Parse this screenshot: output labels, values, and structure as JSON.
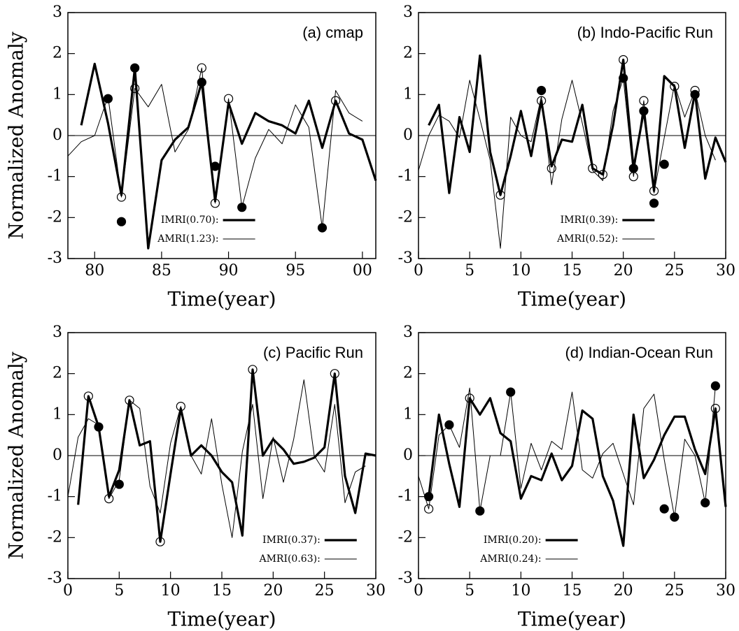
{
  "chart_data": [
    {
      "type": "line",
      "title": "(a) cmap",
      "xlabel": "Time(year)",
      "ylabel": "Normalized Anomaly",
      "xlim": [
        78,
        101
      ],
      "ylim": [
        -3,
        3
      ],
      "xticks": [
        80,
        85,
        90,
        95,
        {
          "value": 100,
          "label": "00"
        }
      ],
      "yticks": [
        -3,
        -2,
        -1,
        0,
        1,
        2,
        3
      ],
      "series": [
        {
          "name": "IMRI(0.70):",
          "color": "#000000",
          "line_width": 3.2,
          "x": [
            79,
            80,
            81,
            82,
            83,
            84,
            85,
            86,
            87,
            88,
            89,
            90,
            91,
            92,
            93,
            94,
            95,
            96,
            97,
            98,
            99,
            100,
            101
          ],
          "values": [
            0.25,
            1.75,
            0.3,
            -1.45,
            1.65,
            -2.75,
            -0.6,
            -0.1,
            0.2,
            1.3,
            -1.6,
            0.8,
            -0.2,
            0.55,
            0.35,
            0.25,
            0.05,
            0.85,
            -0.3,
            0.85,
            0.05,
            -0.1,
            -1.1
          ]
        },
        {
          "name": "AMRI(1.23):",
          "color": "#000000",
          "line_width": 1,
          "x": [
            78,
            79,
            80,
            81,
            82,
            83,
            84,
            85,
            86,
            87,
            88,
            89,
            90,
            91,
            92,
            93,
            94,
            95,
            96,
            97,
            98,
            99,
            100
          ],
          "values": [
            -0.5,
            -0.15,
            0,
            0.95,
            -1.5,
            1.15,
            0.7,
            1.25,
            -0.4,
            0.15,
            1.65,
            -1.65,
            0.9,
            -1.75,
            -0.55,
            0.15,
            -0.2,
            0.75,
            0.2,
            -2.25,
            1.1,
            0.55,
            0.35
          ]
        }
      ],
      "filled_markers": {
        "x": [
          81,
          82,
          83,
          88,
          89,
          91,
          97
        ],
        "values": [
          0.9,
          -2.1,
          1.65,
          1.3,
          -0.75,
          -1.75,
          -2.25
        ]
      },
      "open_markers": {
        "x": [
          82,
          83,
          88,
          89,
          90,
          98
        ],
        "values": [
          -1.5,
          1.15,
          1.65,
          -1.65,
          0.9,
          0.85
        ]
      }
    },
    {
      "type": "line",
      "title": "(b) Indo-Pacific Run",
      "xlabel": "Time(year)",
      "xlim": [
        0,
        30
      ],
      "ylim": [
        -3,
        3
      ],
      "xticks": [
        0,
        5,
        10,
        15,
        20,
        25,
        30
      ],
      "yticks": [
        -3,
        -2,
        -1,
        0,
        1,
        2,
        3
      ],
      "series": [
        {
          "name": "IMRI(0.39):",
          "color": "#000000",
          "line_width": 3.2,
          "x": [
            1,
            2,
            3,
            4,
            5,
            6,
            7,
            8,
            9,
            10,
            11,
            12,
            13,
            14,
            15,
            16,
            17,
            18,
            19,
            20,
            21,
            22,
            23,
            24,
            25,
            26,
            27,
            28,
            29,
            30
          ],
          "values": [
            0.25,
            0.75,
            -1.4,
            0.45,
            -0.4,
            1.95,
            -0.4,
            -1.45,
            -0.5,
            0.6,
            -0.5,
            0.85,
            -0.75,
            -0.1,
            -0.15,
            0.75,
            -0.8,
            -0.95,
            0.25,
            1.85,
            -0.8,
            0.6,
            -1.35,
            1.45,
            1.2,
            -0.3,
            1.05,
            -1.05,
            -0.05,
            -0.65
          ]
        },
        {
          "name": "AMRI(0.52):",
          "color": "#000000",
          "line_width": 1,
          "x": [
            0,
            1,
            2,
            3,
            4,
            5,
            6,
            7,
            8,
            9,
            10,
            11,
            12,
            13,
            14,
            15,
            16,
            17,
            18,
            19,
            20,
            21,
            22,
            23,
            24,
            25,
            26,
            27,
            28,
            29
          ],
          "values": [
            -0.85,
            0,
            0.5,
            0.35,
            -0.05,
            1.35,
            0.4,
            -0.6,
            -2.75,
            0.45,
            0,
            -0.15,
            0.95,
            -1.2,
            0.4,
            1.35,
            0.3,
            -0.85,
            -1.1,
            0.6,
            1.4,
            -1,
            0.85,
            -1.4,
            -0.05,
            1.25,
            0.45,
            1.1,
            0,
            -0.6
          ]
        }
      ],
      "filled_markers": {
        "x": [
          12,
          20,
          21,
          22,
          23,
          24,
          27
        ],
        "values": [
          1.1,
          1.4,
          -0.8,
          0.6,
          -1.65,
          -0.7,
          1
        ]
      },
      "open_markers": {
        "x": [
          8,
          12,
          13,
          17,
          18,
          20,
          21,
          22,
          23,
          25,
          27
        ],
        "values": [
          -1.45,
          0.85,
          -0.8,
          -0.8,
          -0.95,
          1.85,
          -1,
          0.85,
          -1.35,
          1.2,
          1.1
        ]
      }
    },
    {
      "type": "line",
      "title": "(c) Pacific Run",
      "xlabel": "Time(year)",
      "ylabel": "Normalized Anomaly",
      "xlim": [
        0,
        30
      ],
      "ylim": [
        -3,
        3
      ],
      "xticks": [
        0,
        5,
        10,
        15,
        20,
        25,
        30
      ],
      "yticks": [
        -3,
        -2,
        -1,
        0,
        1,
        2,
        3
      ],
      "series": [
        {
          "name": "IMRI(0.37):",
          "color": "#000000",
          "line_width": 3.2,
          "x": [
            1,
            2,
            3,
            4,
            5,
            6,
            7,
            8,
            9,
            10,
            11,
            12,
            13,
            14,
            15,
            16,
            17,
            18,
            19,
            20,
            21,
            22,
            23,
            24,
            25,
            26,
            27,
            28,
            29,
            30
          ],
          "values": [
            -1.2,
            1.45,
            0.7,
            -1,
            -0.35,
            1.35,
            0.25,
            0.35,
            -2.1,
            -0.45,
            1.15,
            0,
            0.25,
            0,
            -0.4,
            -0.65,
            -1.95,
            2.1,
            0,
            0.4,
            0.15,
            -0.2,
            -0.15,
            -0.05,
            0.2,
            2,
            -0.5,
            -1.4,
            0.05,
            0
          ]
        },
        {
          "name": "AMRI(0.63):",
          "color": "#000000",
          "line_width": 1,
          "x": [
            0,
            1,
            2,
            3,
            4,
            5,
            6,
            7,
            8,
            9,
            10,
            11,
            12,
            13,
            14,
            15,
            16,
            17,
            18,
            19,
            20,
            21,
            22,
            23,
            24,
            25,
            26,
            27,
            28,
            29
          ],
          "values": [
            -1,
            0.45,
            0.9,
            0.75,
            -1.05,
            -0.6,
            1.35,
            1.15,
            -0.75,
            -1.4,
            0.3,
            1.2,
            0,
            -0.45,
            0.9,
            -0.7,
            -2,
            0.1,
            1.25,
            -1.05,
            0.45,
            -0.65,
            0.4,
            1.85,
            0,
            -0.4,
            1.25,
            -1.15,
            -0.4,
            -0.25
          ]
        }
      ],
      "filled_markers": {
        "x": [
          3,
          5
        ],
        "values": [
          0.7,
          -0.7
        ]
      },
      "open_markers": {
        "x": [
          2,
          4,
          6,
          9,
          11,
          18,
          26
        ],
        "values": [
          1.45,
          -1.05,
          1.35,
          -2.1,
          1.2,
          2.1,
          2
        ]
      }
    },
    {
      "type": "line",
      "title": "(d) Indian-Ocean Run",
      "xlabel": "Time(year)",
      "xlim": [
        0,
        30
      ],
      "ylim": [
        -3,
        3
      ],
      "xticks": [
        0,
        5,
        10,
        15,
        20,
        25,
        30
      ],
      "yticks": [
        -3,
        -2,
        -1,
        0,
        1,
        2,
        3
      ],
      "series": [
        {
          "name": "IMRI(0.20):",
          "color": "#000000",
          "line_width": 3.2,
          "x": [
            1,
            2,
            3,
            4,
            5,
            6,
            7,
            8,
            9,
            10,
            11,
            12,
            13,
            14,
            15,
            16,
            17,
            18,
            19,
            20,
            21,
            22,
            23,
            24,
            25,
            26,
            27,
            28,
            29,
            30
          ],
          "values": [
            -1,
            1,
            -0.2,
            -1.25,
            1.4,
            1,
            1.4,
            0.55,
            0.35,
            -1.05,
            -0.5,
            -0.6,
            0.05,
            -0.6,
            -0.25,
            1.1,
            0.9,
            -0.5,
            -1.1,
            -2.2,
            1,
            -0.55,
            -0.1,
            0.5,
            0.95,
            0.95,
            0.15,
            -0.45,
            1.15,
            -1.25
          ]
        },
        {
          "name": "AMRI(0.24):",
          "color": "#000000",
          "line_width": 1,
          "x": [
            0,
            1,
            2,
            3,
            4,
            5,
            6,
            7,
            8,
            9,
            10,
            11,
            12,
            13,
            14,
            15,
            16,
            17,
            18,
            19,
            20,
            21,
            22,
            23,
            24,
            25,
            26,
            27,
            28,
            29
          ],
          "values": [
            -0.5,
            -1.3,
            0.5,
            0.75,
            0.2,
            1.65,
            -1.35,
            0,
            0,
            1.55,
            -0.8,
            0.3,
            -0.35,
            0.35,
            0.15,
            1.55,
            -0.35,
            -0.55,
            0.05,
            0.3,
            -0.45,
            -1.2,
            1.15,
            1.5,
            -0.1,
            -1.5,
            0.4,
            0,
            -1.15,
            1.7
          ]
        }
      ],
      "filled_markers": {
        "x": [
          1,
          3,
          6,
          9,
          24,
          25,
          28,
          29
        ],
        "values": [
          -1,
          0.75,
          -1.35,
          1.55,
          -1.3,
          -1.5,
          -1.15,
          1.7
        ]
      },
      "open_markers": {
        "x": [
          1,
          5,
          29
        ],
        "values": [
          -1.3,
          1.4,
          1.15
        ]
      }
    }
  ]
}
